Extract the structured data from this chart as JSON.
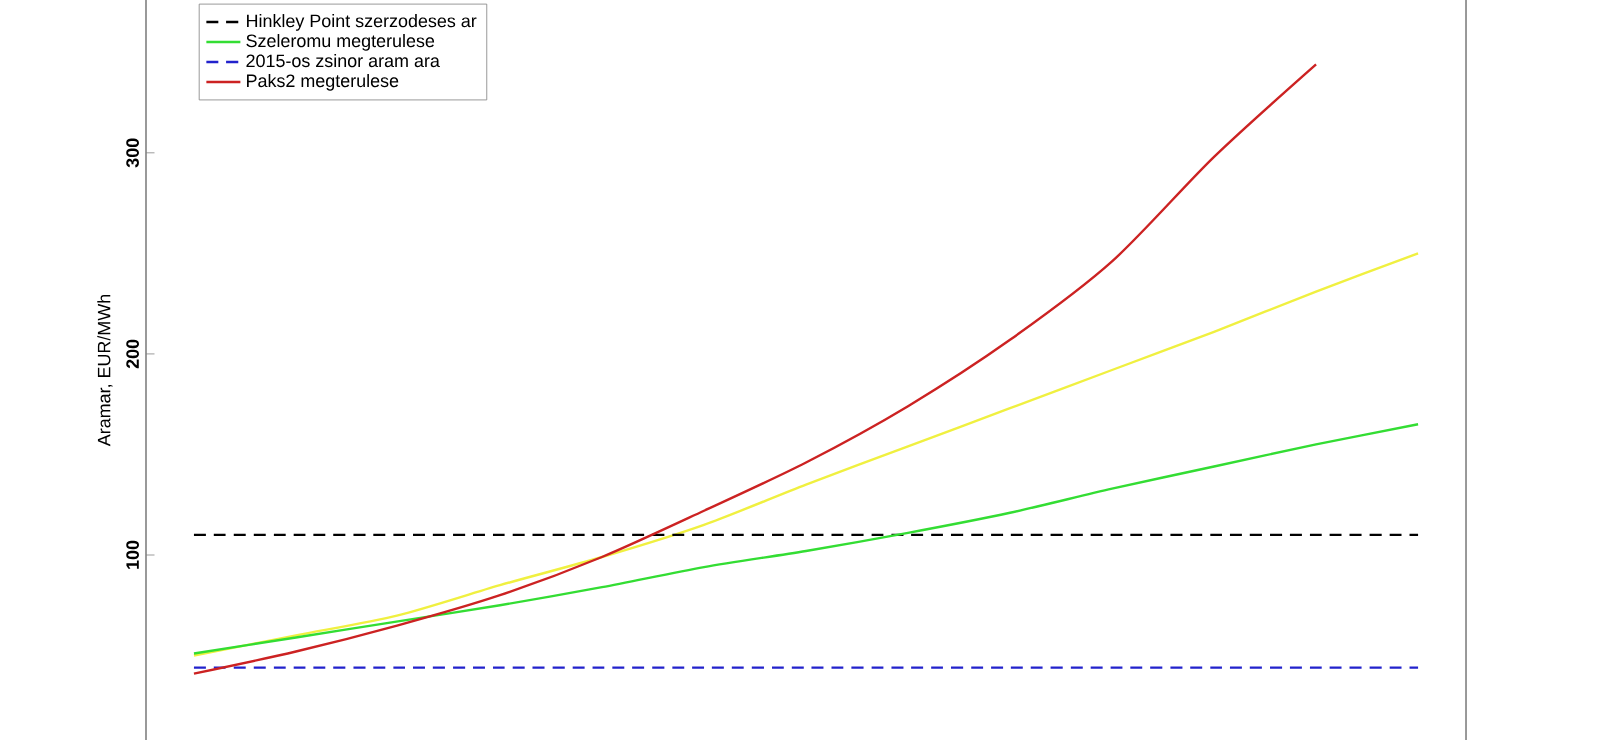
{
  "chart_data": {
    "type": "line",
    "ylabel": "Aramar, EUR/MWh",
    "categories": [
      null,
      null,
      null,
      null,
      null,
      null,
      null,
      null,
      null,
      null,
      null,
      null,
      null
    ],
    "series": [
      {
        "color": "#f0f040",
        "values": [
          50,
          60,
          70,
          85,
          99,
          115,
          135,
          154,
          173,
          192,
          211,
          231,
          250
        ]
      },
      {
        "name": "Hinkley Point szerzodeses ar",
        "color": "#000000",
        "line_style": "dashed",
        "values": [
          110,
          110,
          110,
          110,
          110,
          110,
          110,
          110,
          110,
          110,
          110,
          110,
          110
        ]
      },
      {
        "name": "Szeleromu megterulese",
        "color": "#33dd33",
        "values": [
          51,
          59,
          67,
          75,
          84,
          94,
          102,
          111,
          121,
          133,
          144,
          155,
          165
        ]
      },
      {
        "name": "2015-os zsinor aram ara",
        "color": "#2222cc",
        "line_style": "dashed",
        "values": [
          44,
          44,
          44,
          44,
          44,
          44,
          44,
          44,
          44,
          44,
          44,
          44,
          44
        ]
      },
      {
        "name": "Paks2 megterulese",
        "color": "#cc2222",
        "values": [
          41,
          52,
          65,
          80,
          99,
          122,
          146,
          174,
          207,
          246,
          298,
          344,
          null
        ]
      }
    ],
    "ylim": [
      8,
      376
    ],
    "yticks": [
      100,
      200,
      300
    ],
    "tick_labels": "y",
    "legend": "top left",
    "grid": false
  }
}
